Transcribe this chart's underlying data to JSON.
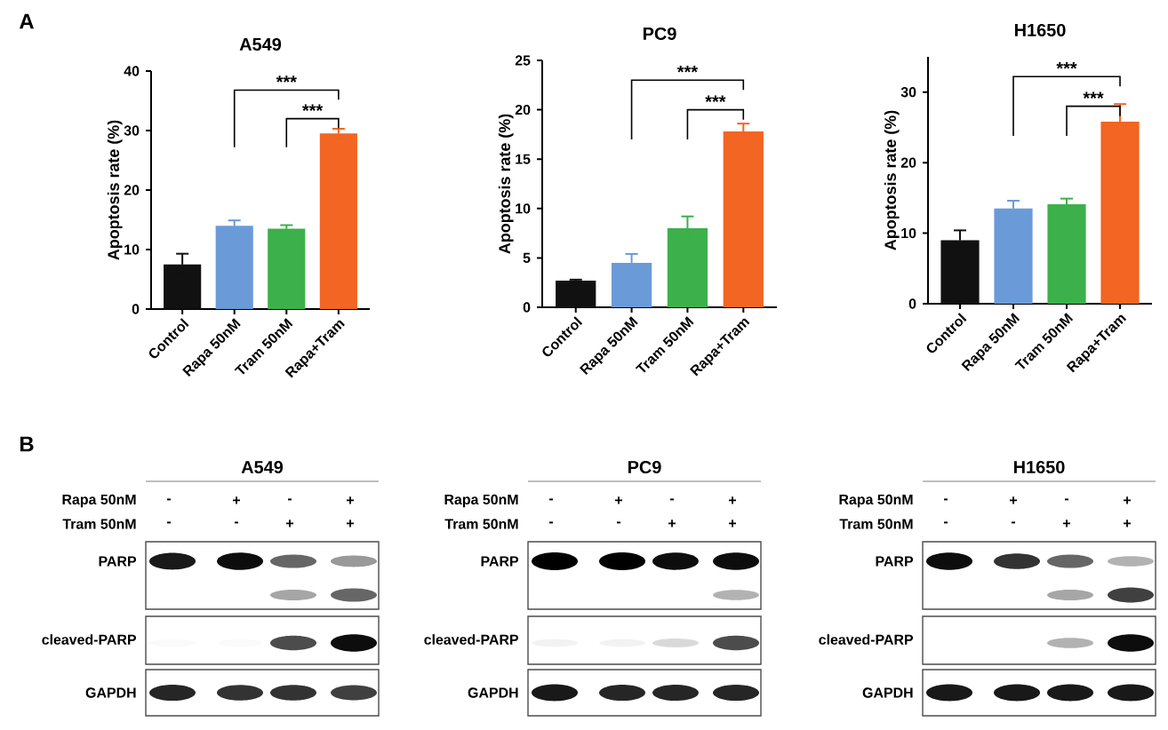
{
  "chart_data": [
    {
      "type": "bar",
      "title": "A549",
      "ylabel": "Apoptosis rate (%)",
      "categories": [
        "Control",
        "Rapa 50nM",
        "Tram 50nM",
        "Rapa+Tram"
      ],
      "values": [
        7.5,
        14,
        13.5,
        29.5
      ],
      "errors": [
        1.8,
        0.9,
        0.6,
        0.8
      ],
      "colors": [
        "#111111",
        "#6a9bd8",
        "#3cb04a",
        "#f26522"
      ],
      "ylim": [
        0,
        40
      ],
      "yticks": [
        0,
        10,
        20,
        30,
        40
      ],
      "annotations": [
        "***",
        "***",
        "A"
      ]
    },
    {
      "type": "bar",
      "title": "PC9",
      "ylabel": "Apoptosis rate (%)",
      "categories": [
        "Control",
        "Rapa 50nM",
        "Tram 50nM",
        "Rapa+Tram"
      ],
      "values": [
        2.7,
        4.5,
        8.0,
        17.8
      ],
      "errors": [
        0.1,
        0.9,
        1.2,
        0.8
      ],
      "colors": [
        "#111111",
        "#6a9bd8",
        "#3cb04a",
        "#f26522"
      ],
      "ylim": [
        0,
        25
      ],
      "yticks": [
        0,
        5,
        10,
        15,
        20,
        25
      ],
      "annotations": [
        "***",
        "***"
      ]
    },
    {
      "type": "bar",
      "title": "H1650",
      "ylabel": "Apoptosis rate (%)",
      "categories": [
        "Control",
        "Rapa 50nM",
        "Tram 50nM",
        "Rapa+Tram"
      ],
      "values": [
        9.0,
        13.5,
        14.1,
        25.8
      ],
      "errors": [
        1.4,
        1.1,
        0.8,
        2.5
      ],
      "colors": [
        "#111111",
        "#6a9bd8",
        "#3cb04a",
        "#f26522"
      ],
      "ylim": [
        0,
        35
      ],
      "yticks": [
        0,
        10,
        20,
        30
      ],
      "annotations": [
        "***",
        "***"
      ]
    },
    {
      "type": "other",
      "title": "A549",
      "annotations": [
        "Rapa 50nM",
        "-",
        "+",
        "-",
        "+",
        "Tram 50nM",
        "-",
        "-",
        "+",
        "+",
        "PARP",
        "cleaved-PARP",
        "GAPDH",
        "B"
      ]
    },
    {
      "type": "other",
      "title": "PC9",
      "annotations": [
        "Rapa 50nM",
        "-",
        "+",
        "-",
        "+",
        "Tram 50nM",
        "-",
        "-",
        "+",
        "+",
        "PARP",
        "cleaved-PARP",
        "GAPDH"
      ]
    },
    {
      "type": "other",
      "title": "H1650",
      "annotations": [
        "Rapa 50nM",
        "-",
        "+",
        "-",
        "+",
        "Tram 50nM",
        "-",
        "-",
        "+",
        "+",
        "PARP",
        "cleaved-PARP",
        "GAPDH"
      ]
    }
  ]
}
